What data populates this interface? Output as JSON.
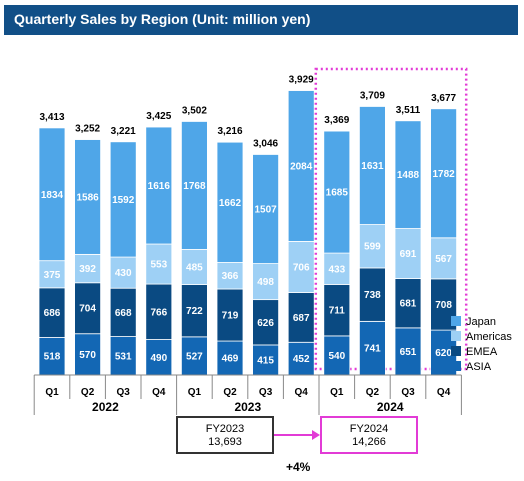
{
  "title": "Quarterly Sales by Region (Unit: million yen)",
  "colors": {
    "title_bg": "#114f87",
    "Japan": "#4fa6e8",
    "Americas": "#9ed0f5",
    "EMEA": "#0a4a82",
    "ASIA": "#1367b4",
    "highlight": "#e23bd6"
  },
  "chart_data": {
    "type": "bar",
    "stacked": true,
    "categories": [
      "Q1",
      "Q2",
      "Q3",
      "Q4",
      "Q1",
      "Q2",
      "Q3",
      "Q4",
      "Q1",
      "Q2",
      "Q3",
      "Q4"
    ],
    "years": [
      {
        "label": "2022",
        "quarters": 4
      },
      {
        "label": "2023",
        "quarters": 4
      },
      {
        "label": "2024",
        "quarters": 4
      }
    ],
    "series": [
      {
        "name": "ASIA",
        "values": [
          518,
          570,
          531,
          490,
          527,
          469,
          415,
          452,
          540,
          741,
          651,
          620
        ]
      },
      {
        "name": "EMEA",
        "values": [
          686,
          704,
          668,
          766,
          722,
          719,
          626,
          687,
          711,
          738,
          681,
          708
        ]
      },
      {
        "name": "Americas",
        "values": [
          375,
          392,
          430,
          553,
          485,
          366,
          498,
          706,
          433,
          599,
          691,
          567
        ]
      },
      {
        "name": "Japan",
        "values": [
          1834,
          1586,
          1592,
          1616,
          1768,
          1662,
          1507,
          2084,
          1685,
          1631,
          1488,
          1782
        ]
      }
    ],
    "totals": [
      "3,413",
      "3,252",
      "3,221",
      "3,425",
      "3,502",
      "3,216",
      "3,046",
      "3,929",
      "3,369",
      "3,709",
      "3,511",
      "3,677"
    ],
    "legend": [
      "Japan",
      "Americas",
      "EMEA",
      "ASIA"
    ],
    "legend_position": "right",
    "ylim": [
      0,
      4200
    ]
  },
  "fy_boxes": [
    {
      "label": "FY2023",
      "value": "13,693"
    },
    {
      "label": "FY2024",
      "value": "14,266"
    }
  ],
  "growth": "+4%"
}
